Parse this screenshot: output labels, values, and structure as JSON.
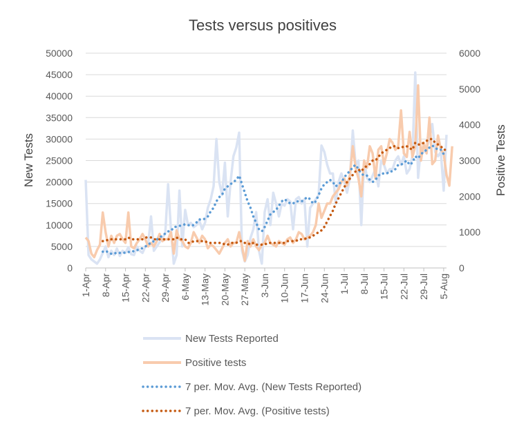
{
  "chart_data": {
    "type": "line",
    "title": "Tests versus positives",
    "ylabel": "New Tests",
    "y2label": "Positive Tests",
    "ylim": [
      0,
      50000
    ],
    "y2lim": [
      0,
      6000
    ],
    "yticks": [
      "0",
      "5000",
      "10000",
      "15000",
      "20000",
      "25000",
      "30000",
      "35000",
      "40000",
      "45000",
      "50000"
    ],
    "y2ticks": [
      "0",
      "1000",
      "2000",
      "3000",
      "4000",
      "5000",
      "6000"
    ],
    "x_start": "1-Apr",
    "x_end": "5-Aug",
    "xtick_labels": [
      "1-Apr",
      "8-Apr",
      "15-Apr",
      "22-Apr",
      "29-Apr",
      "6-May",
      "13-May",
      "20-May",
      "27-May",
      "3-Jun",
      "10-Jun",
      "17-Jun",
      "24-Jun",
      "1-Jul",
      "8-Jul",
      "15-Jul",
      "22-Jul",
      "29-Jul",
      "5-Aug"
    ],
    "grid": true,
    "legend_position": "bottom",
    "series": [
      {
        "name": "New Tests Reported",
        "axis": "left",
        "color": "#dae3f3",
        "values": [
          20500,
          3000,
          2000,
          1500,
          1000,
          2000,
          3500,
          5000,
          2500,
          4000,
          3000,
          4500,
          2800,
          4000,
          3500,
          4800,
          3200,
          3000,
          5000,
          4000,
          3500,
          5000,
          5500,
          12000,
          4000,
          5000,
          6000,
          7000,
          8000,
          19500,
          9000,
          1000,
          3000,
          18000,
          5000,
          13500,
          10000,
          10500,
          9500,
          10000,
          11000,
          9000,
          10500,
          14000,
          16000,
          19000,
          30000,
          20000,
          17000,
          24500,
          12000,
          20000,
          26000,
          28000,
          31500,
          4000,
          1500,
          3000,
          7000,
          9000,
          13000,
          4000,
          1000,
          13000,
          16000,
          10000,
          17500,
          15000,
          12000,
          15000,
          14500,
          16000,
          15500,
          9000,
          16000,
          16500,
          15000,
          16000,
          5000,
          14000,
          15000,
          16000,
          17000,
          28500,
          27000,
          24000,
          22000,
          22000,
          15000,
          20000,
          22000,
          20000,
          17500,
          21000,
          32000,
          24000,
          25000,
          10000,
          25000,
          21000,
          20000,
          21500,
          23000,
          19000,
          25000,
          24000,
          22000,
          23000,
          23000,
          25000,
          26000,
          24000,
          26000,
          22000,
          23000,
          26000,
          45500,
          21000,
          28000,
          27000,
          28000,
          30000,
          33500,
          27000,
          26000,
          27000,
          18000,
          31000
        ],
        "mavg": [
          null,
          null,
          null,
          null,
          null,
          null,
          3800,
          4000,
          3600,
          3300,
          3300,
          3600,
          3500,
          3600,
          3500,
          3700,
          3800,
          3900,
          4100,
          4400,
          4600,
          5000,
          5300,
          6000,
          6200,
          6600,
          7000,
          7600,
          8000,
          8500,
          8600,
          9500,
          9600,
          9800,
          9900,
          10200,
          10000,
          9800,
          10000,
          10600,
          11300,
          11200,
          11500,
          12000,
          13200,
          14000,
          15500,
          16500,
          17000,
          18500,
          19000,
          19500,
          20000,
          20500,
          21500,
          19500,
          17500,
          15500,
          14000,
          12000,
          10500,
          9000,
          8500,
          9500,
          11000,
          12500,
          13000,
          13500,
          14500,
          15500,
          16000,
          15500,
          15000,
          15000,
          15500,
          15500,
          15500,
          16000,
          16500,
          16000,
          15000,
          15500,
          17000,
          18500,
          19500,
          20000,
          20500,
          20000,
          19000,
          19500,
          20000,
          21000,
          22000,
          22500,
          23500,
          24000,
          23000,
          22000,
          21500,
          21500,
          20500,
          20000,
          20500,
          21500,
          22000,
          22000,
          22000,
          22500,
          22500,
          23000,
          24000,
          24000,
          24500,
          25000,
          24000,
          24500,
          26000,
          25500,
          26500,
          27000,
          27500,
          28000,
          28500,
          28000,
          27500,
          27500,
          26500,
          26500
        ]
      },
      {
        "name": "Positive tests",
        "axis": "right",
        "color": "#f8cbad",
        "values": [
          850,
          750,
          400,
          300,
          500,
          650,
          1550,
          1000,
          600,
          900,
          700,
          900,
          950,
          800,
          700,
          1550,
          600,
          550,
          700,
          800,
          950,
          800,
          600,
          700,
          600,
          750,
          950,
          750,
          800,
          800,
          1000,
          400,
          1050,
          800,
          750,
          600,
          550,
          700,
          1000,
          850,
          700,
          900,
          800,
          550,
          650,
          600,
          500,
          400,
          550,
          700,
          800,
          600,
          700,
          700,
          1000,
          600,
          200,
          750,
          600,
          800,
          600,
          500,
          650,
          700,
          900,
          700,
          650,
          600,
          750,
          700,
          650,
          800,
          850,
          700,
          800,
          1000,
          950,
          800,
          850,
          900,
          1000,
          1200,
          1800,
          1400,
          1600,
          1800,
          1800,
          2000,
          2100,
          2200,
          2400,
          2500,
          2300,
          2600,
          3400,
          2800,
          2500,
          2000,
          3000,
          2800,
          3400,
          3200,
          2500,
          3300,
          3400,
          2900,
          3200,
          3600,
          3500,
          3300,
          3400,
          4400,
          3200,
          3100,
          3800,
          3100,
          3400,
          5100,
          3000,
          3500,
          3200,
          4200,
          2900,
          3000,
          3700,
          3300,
          3200,
          2600,
          2300,
          3400
        ],
        "mavg": [
          null,
          null,
          null,
          null,
          null,
          null,
          750,
          750,
          800,
          800,
          800,
          800,
          800,
          800,
          800,
          850,
          800,
          800,
          800,
          800,
          800,
          850,
          850,
          850,
          800,
          800,
          800,
          800,
          800,
          800,
          800,
          800,
          850,
          800,
          800,
          800,
          700,
          700,
          750,
          750,
          750,
          750,
          750,
          700,
          700,
          700,
          700,
          700,
          700,
          650,
          650,
          700,
          700,
          700,
          750,
          750,
          700,
          700,
          650,
          700,
          650,
          650,
          650,
          650,
          700,
          700,
          700,
          700,
          700,
          700,
          700,
          750,
          750,
          750,
          750,
          800,
          800,
          800,
          850,
          850,
          900,
          950,
          1000,
          1050,
          1150,
          1300,
          1450,
          1600,
          1800,
          1950,
          2100,
          2250,
          2400,
          2500,
          2600,
          2700,
          2750,
          2700,
          2800,
          2850,
          2900,
          3000,
          3000,
          3100,
          3200,
          3250,
          3300,
          3350,
          3400,
          3400,
          3350,
          3350,
          3400,
          3400,
          3350,
          3300,
          3500,
          3450,
          3450,
          3500,
          3550,
          3600,
          3600,
          3500,
          3450,
          3400,
          3300,
          3300
        ]
      }
    ],
    "legend": [
      {
        "label": "New Tests Reported",
        "style": "solid",
        "color": "#dae3f3"
      },
      {
        "label": "Positive tests",
        "style": "solid",
        "color": "#f8cbad"
      },
      {
        "label": "7 per. Mov. Avg. (New Tests Reported)",
        "style": "dotted",
        "color": "#5b9bd5"
      },
      {
        "label": "7 per. Mov. Avg. (Positive tests)",
        "style": "dotted",
        "color": "#c55a11"
      }
    ]
  }
}
